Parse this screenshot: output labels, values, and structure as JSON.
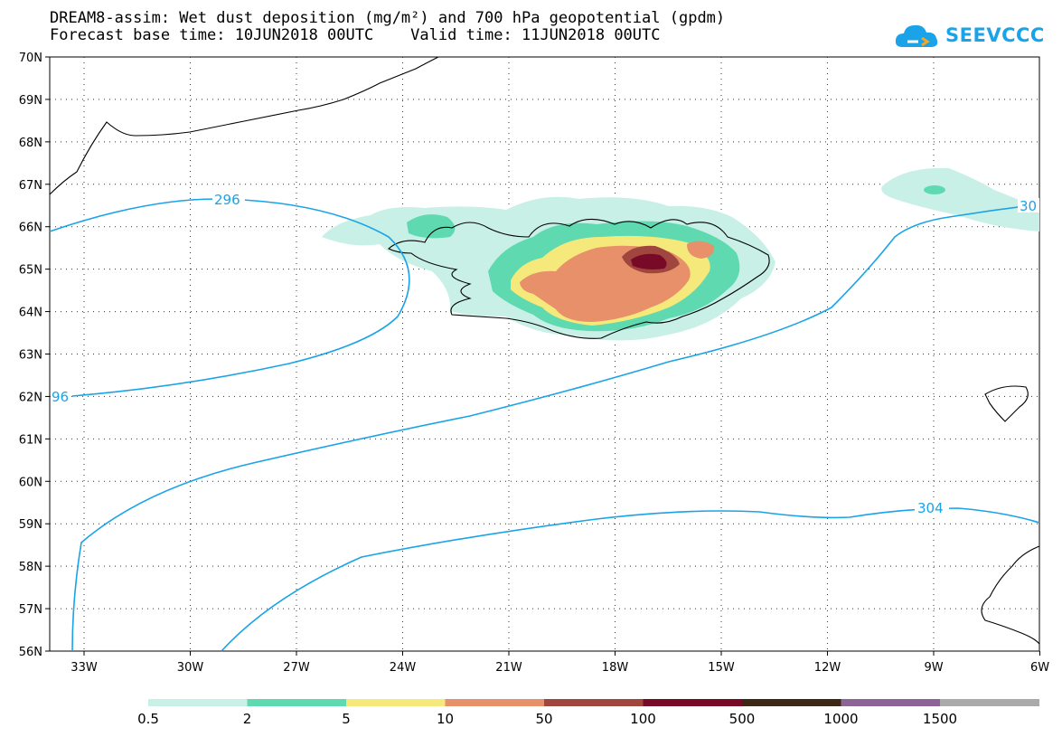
{
  "title": {
    "line1": "DREAM8-assim: Wet dust deposition (mg/m²) and 700 hPa geopotential (gpdm)",
    "line2": "Forecast base time: 10JUN2018 00UTC    Valid time: 11JUN2018 00UTC"
  },
  "logo": {
    "text": "SEEVCCC",
    "icon": "cloud-icon",
    "color": "#1aa3e8"
  },
  "map": {
    "lat_labels": [
      "70N",
      "69N",
      "68N",
      "67N",
      "66N",
      "65N",
      "64N",
      "63N",
      "62N",
      "61N",
      "60N",
      "59N",
      "58N",
      "57N",
      "56N"
    ],
    "lon_labels": [
      "33W",
      "30W",
      "27W",
      "24W",
      "21W",
      "18W",
      "15W",
      "12W",
      "9W",
      "6W"
    ],
    "contour_labels": [
      "296",
      "96",
      "304",
      "30"
    ],
    "contour_color": "#1aa3e8",
    "region": "Iceland"
  },
  "legend": {
    "bins": [
      {
        "color": "#c8f0e6"
      },
      {
        "color": "#5fd9b0"
      },
      {
        "color": "#f5e97c"
      },
      {
        "color": "#e8906a"
      },
      {
        "color": "#a0463e"
      },
      {
        "color": "#780a28"
      },
      {
        "color": "#3c2814"
      },
      {
        "color": "#8c6496"
      },
      {
        "color": "#aaaaaa"
      }
    ],
    "labels": [
      "0.5",
      "2",
      "5",
      "10",
      "50",
      "100",
      "500",
      "1000",
      "1500"
    ]
  }
}
